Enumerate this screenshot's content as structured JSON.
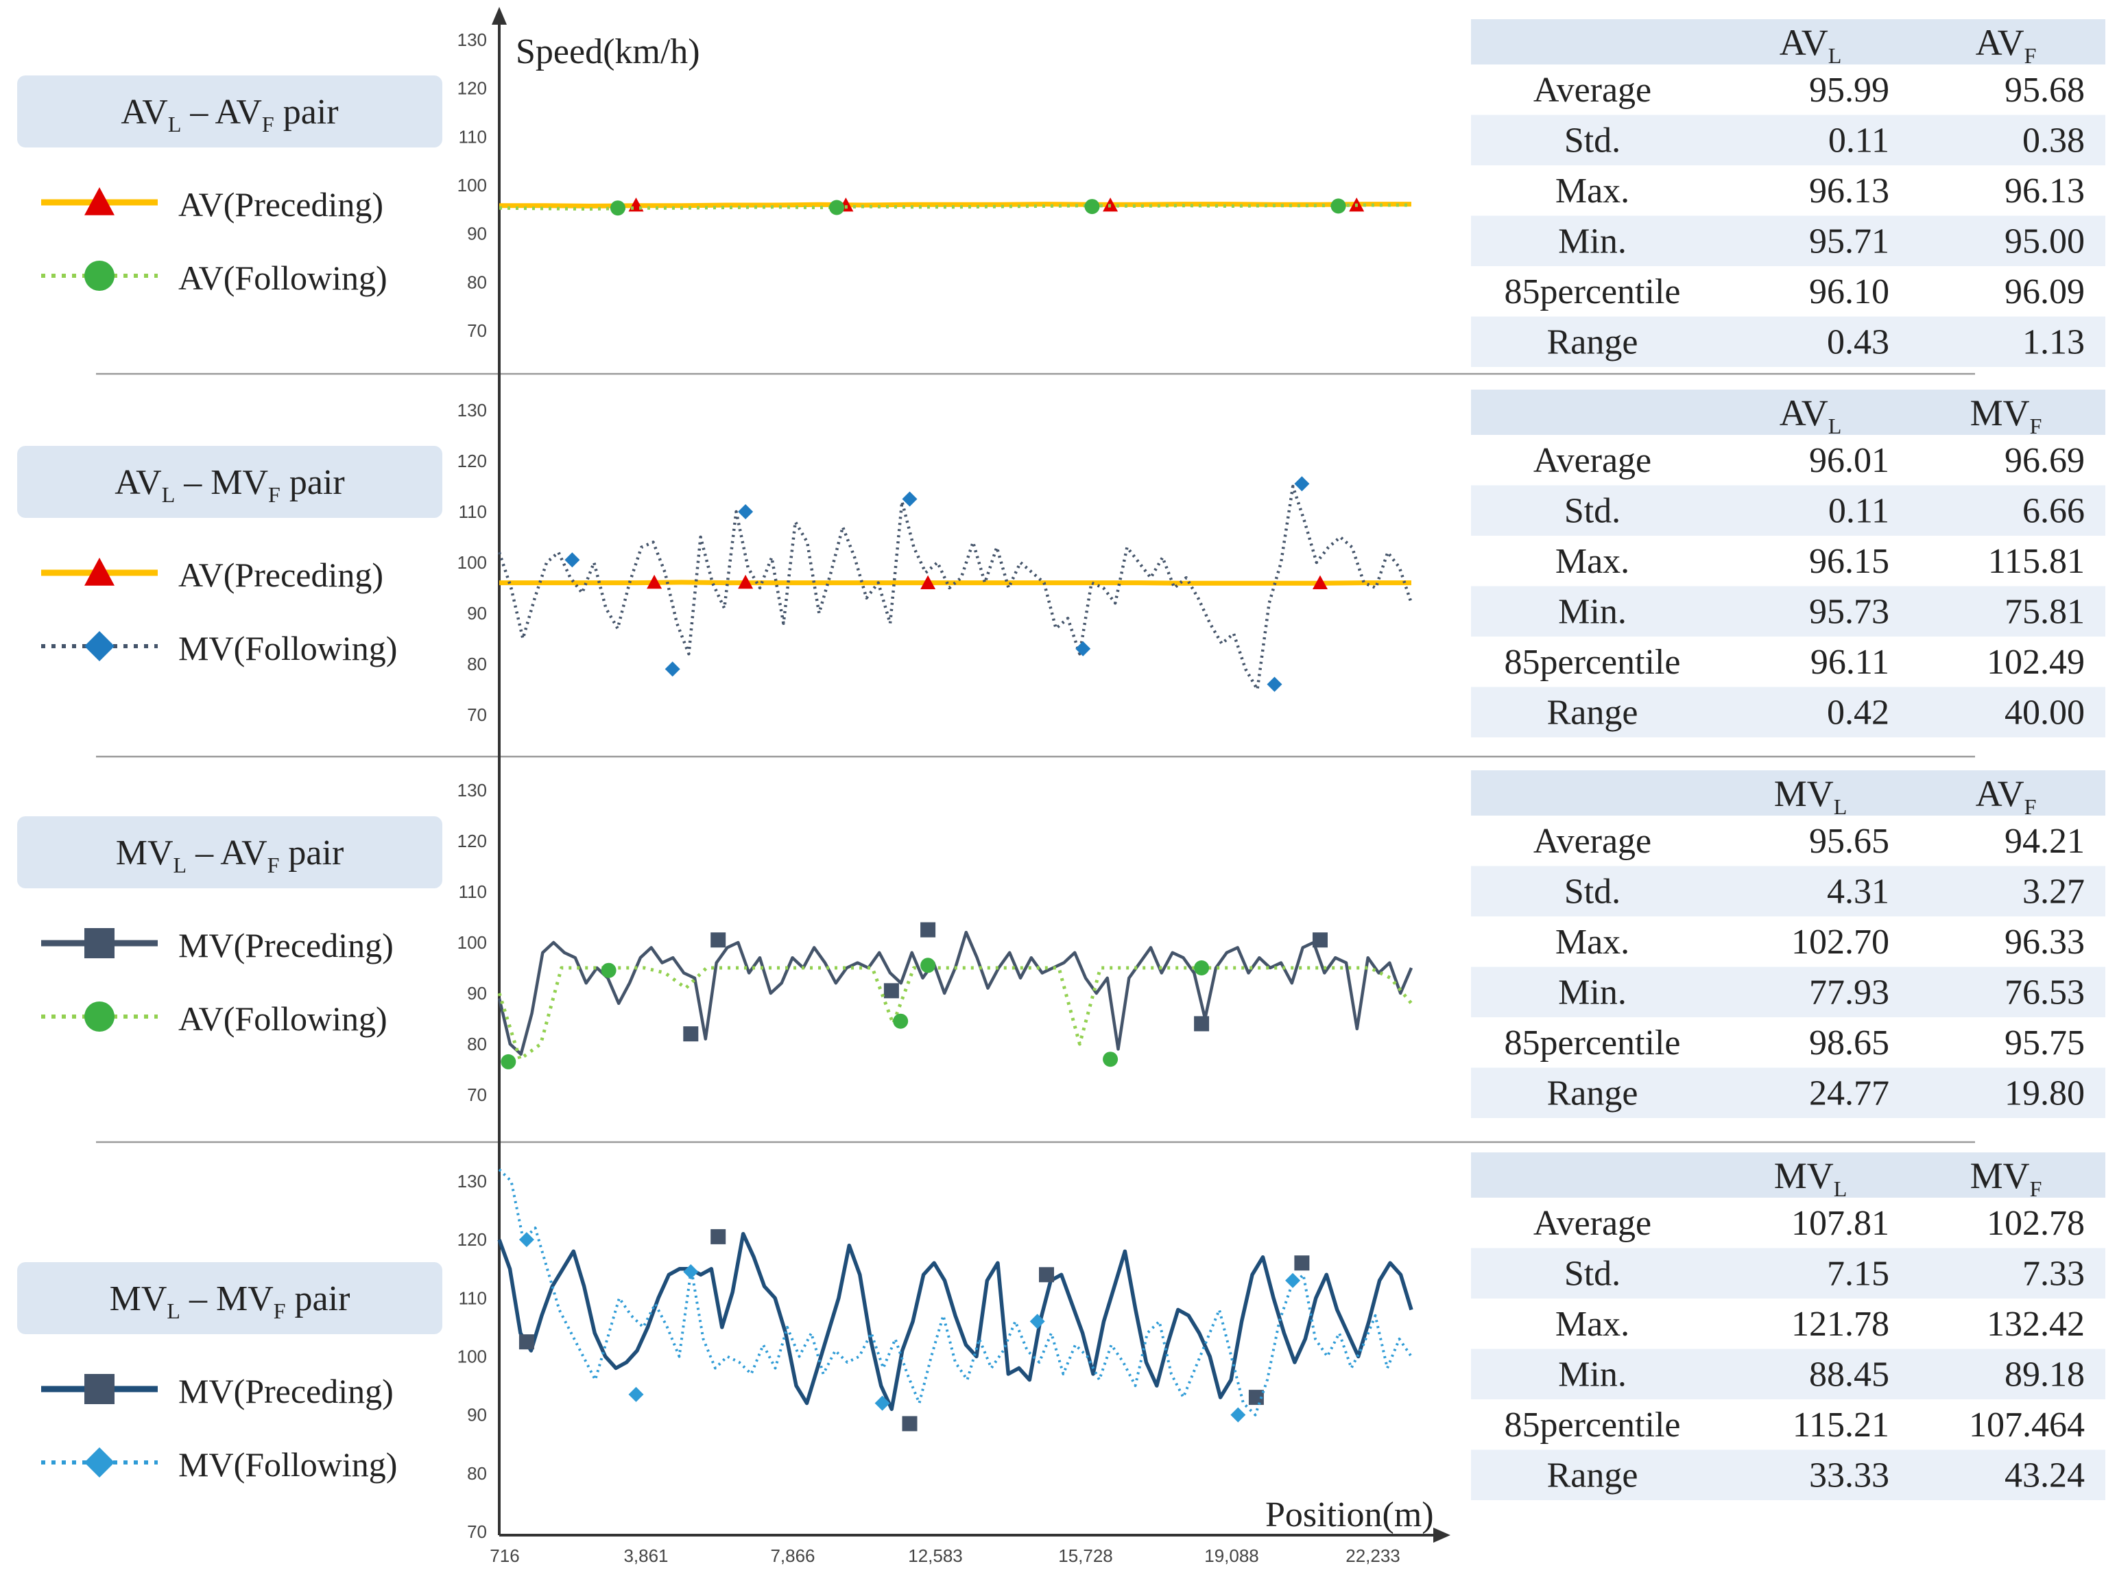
{
  "chart_data": {
    "type": "line",
    "ylabel": "Speed(km/h)",
    "xlabel": "Position(m)",
    "ylim": [
      70,
      130
    ],
    "y_ticks": [
      "130",
      "120",
      "110",
      "100",
      "90",
      "80",
      "70"
    ],
    "x_ticks": [
      "716",
      "3,861",
      "7,866",
      "12,583",
      "15,728",
      "19,088",
      "22,233"
    ],
    "colors": {
      "av_line": "#FFC000",
      "av_marker": "#E00000",
      "av_follow": "#92D050",
      "av_follow_marker": "#3CB043",
      "mv_follow_2": "#44546A",
      "mv_follow_marker_2": "#1F7BC1",
      "mv_preceding": "#44546A",
      "mv_preceding_4": "#1F4E79",
      "mv_follow_4": "#2E9BD6",
      "mv_follow_marker_4": "#2E9BD6",
      "header_fill": "#DCE6F2",
      "row_fill": "#EAF0F8",
      "pair_box": "#DCE6F2"
    },
    "panels": [
      {
        "pair": {
          "p1": "AV",
          "s1": "L",
          "mid": " – ",
          "p2": "AV",
          "s2": "F",
          "suffix": " pair"
        },
        "legend": [
          "AV(Preceding)",
          "AV(Following)"
        ],
        "series": [
          {
            "name": "AV(Preceding)",
            "style": "av_solid",
            "values": [
              95.8,
              95.8,
              95.7,
              95.8,
              95.8,
              95.9,
              95.9,
              96.0,
              95.9,
              96.0,
              96.0,
              96.0,
              96.1,
              96.0,
              96.0,
              96.1,
              96.1,
              96.0,
              96.0,
              96.1,
              96.1
            ],
            "markers": [
              [
                0.15,
                95.9
              ],
              [
                0.38,
                95.9
              ],
              [
                0.67,
                95.9
              ],
              [
                0.94,
                95.9
              ]
            ]
          },
          {
            "name": "AV(Following)",
            "style": "av_dotted",
            "values": [
              95.3,
              95.2,
              95.1,
              95.3,
              95.3,
              95.4,
              95.5,
              95.4,
              95.6,
              95.5,
              95.5,
              95.6,
              95.7,
              95.8,
              95.7,
              95.8,
              95.7,
              95.8,
              95.8,
              95.9,
              95.9
            ],
            "markers": [
              [
                0.13,
                95.3
              ],
              [
                0.37,
                95.4
              ],
              [
                0.65,
                95.6
              ],
              [
                0.92,
                95.7
              ]
            ]
          }
        ],
        "stats": {
          "col1": {
            "p": "AV",
            "s": "L"
          },
          "col2": {
            "p": "AV",
            "s": "F"
          },
          "rows": [
            {
              "label": "Average",
              "v1": "95.99",
              "v2": "95.68"
            },
            {
              "label": "Std.",
              "v1": "0.11",
              "v2": "0.38"
            },
            {
              "label": "Max.",
              "v1": "96.13",
              "v2": "96.13"
            },
            {
              "label": "Min.",
              "v1": "95.71",
              "v2": "95.00"
            },
            {
              "label": "85percentile",
              "v1": "96.10",
              "v2": "96.09"
            },
            {
              "label": "Range",
              "v1": "0.43",
              "v2": "1.13"
            }
          ]
        }
      },
      {
        "pair": {
          "p1": "AV",
          "s1": "L",
          "mid": " – ",
          "p2": "MV",
          "s2": "F",
          "suffix": " pair"
        },
        "legend": [
          "AV(Preceding)",
          "MV(Following)"
        ],
        "series": [
          {
            "name": "AV(Preceding)",
            "style": "av_solid",
            "values": [
              96.0,
              96.0,
              96.0,
              96.0,
              96.1,
              96.0,
              96.0,
              96.0,
              96.0,
              96.0,
              96.0,
              96.0,
              96.0,
              96.0,
              96.0,
              95.9,
              95.9,
              95.9,
              95.9,
              96.0,
              96.0
            ],
            "markers": [
              [
                0.17,
                96.1
              ],
              [
                0.27,
                96.1
              ],
              [
                0.47,
                96.0
              ],
              [
                0.9,
                96.0
              ]
            ]
          },
          {
            "name": "MV(Following)",
            "style": "mv_dotted",
            "values": [
              102,
              95,
              85,
              93,
              100,
              102,
              97,
              94,
              100,
              91,
              87,
              96,
              103,
              104,
              98,
              88,
              82,
              105,
              96,
              91,
              110,
              99,
              95,
              101,
              88,
              108,
              104,
              90,
              98,
              107,
              101,
              93,
              96,
              88,
              112,
              103,
              98,
              100,
              95,
              97,
              104,
              96,
              103,
              95,
              100,
              98,
              96,
              87,
              89,
              82,
              96,
              95,
              92,
              103,
              100,
              97,
              101,
              95,
              97,
              93,
              88,
              84,
              86,
              79,
              75,
              92,
              100,
              115,
              108,
              100,
              103,
              105,
              103,
              96,
              95,
              102,
              99,
              92
            ],
            "markers": [
              [
                0.08,
                100.5
              ],
              [
                0.19,
                79
              ],
              [
                0.27,
                110
              ],
              [
                0.45,
                112.5
              ],
              [
                0.64,
                83
              ],
              [
                0.85,
                76
              ],
              [
                0.88,
                115.5
              ]
            ]
          }
        ],
        "stats": {
          "col1": {
            "p": "AV",
            "s": "L"
          },
          "col2": {
            "p": "MV",
            "s": "F"
          },
          "rows": [
            {
              "label": "Average",
              "v1": "96.01",
              "v2": "96.69"
            },
            {
              "label": "Std.",
              "v1": "0.11",
              "v2": "6.66"
            },
            {
              "label": "Max.",
              "v1": "96.15",
              "v2": "115.81"
            },
            {
              "label": "Min.",
              "v1": "95.73",
              "v2": "75.81"
            },
            {
              "label": "85percentile",
              "v1": "96.11",
              "v2": "102.49"
            },
            {
              "label": "Range",
              "v1": "0.42",
              "v2": "40.00"
            }
          ]
        }
      },
      {
        "pair": {
          "p1": "MV",
          "s1": "L",
          "mid": " – ",
          "p2": "AV",
          "s2": "F",
          "suffix": " pair"
        },
        "legend": [
          "MV(Preceding)",
          "AV(Following)"
        ],
        "series": [
          {
            "name": "MV(Preceding)",
            "style": "mv_solid",
            "values": [
              89,
              80,
              78,
              86,
              98,
              100,
              98,
              97,
              92,
              95,
              93,
              88,
              92,
              97,
              99,
              96,
              97,
              94,
              93,
              81,
              96,
              99,
              100,
              94,
              97,
              90,
              92,
              97,
              95,
              99,
              96,
              92,
              95,
              96,
              95,
              98,
              94,
              92,
              98,
              93,
              96,
              90,
              95,
              102,
              97,
              91,
              95,
              98,
              93,
              97,
              94,
              95,
              96,
              98,
              93,
              90,
              93,
              79,
              93,
              96,
              99,
              94,
              98,
              97,
              94,
              85,
              95,
              98,
              99,
              94,
              97,
              95,
              96,
              92,
              99,
              100,
              94,
              97,
              96,
              83,
              97,
              94,
              96,
              90,
              95
            ],
            "markers": [
              [
                0.21,
                82
              ],
              [
                0.24,
                100.5
              ],
              [
                0.43,
                90.5
              ],
              [
                0.47,
                102.5
              ],
              [
                0.77,
                84
              ],
              [
                0.9,
                100.5
              ]
            ]
          },
          {
            "name": "AV(Following)",
            "style": "av_dotted",
            "values": [
              90,
              77,
              80,
              95,
              95,
              95,
              95,
              95,
              94,
              91,
              95,
              95,
              95,
              95,
              95,
              95,
              95,
              95,
              95,
              84,
              95,
              95,
              95,
              95,
              95,
              95,
              95,
              95,
              80,
              95,
              95,
              95,
              95,
              95,
              95,
              95,
              95,
              95,
              95,
              95,
              95,
              95,
              95,
              93,
              88
            ],
            "markers": [
              [
                0.01,
                76.5
              ],
              [
                0.12,
                94.5
              ],
              [
                0.44,
                84.5
              ],
              [
                0.47,
                95.5
              ],
              [
                0.67,
                77
              ],
              [
                0.77,
                95
              ]
            ]
          }
        ],
        "stats": {
          "col1": {
            "p": "MV",
            "s": "L"
          },
          "col2": {
            "p": "AV",
            "s": "F"
          },
          "rows": [
            {
              "label": "Average",
              "v1": "95.65",
              "v2": "94.21"
            },
            {
              "label": "Std.",
              "v1": "4.31",
              "v2": "3.27"
            },
            {
              "label": "Max.",
              "v1": "102.70",
              "v2": "96.33"
            },
            {
              "label": "Min.",
              "v1": "77.93",
              "v2": "76.53"
            },
            {
              "label": "85percentile",
              "v1": "98.65",
              "v2": "95.75"
            },
            {
              "label": "Range",
              "v1": "24.77",
              "v2": "19.80"
            }
          ]
        }
      },
      {
        "pair": {
          "p1": "MV",
          "s1": "L",
          "mid": " – ",
          "p2": "MV",
          "s2": "F",
          "suffix": " pair"
        },
        "legend": [
          "MV(Preceding)",
          "MV(Following)"
        ],
        "series": [
          {
            "name": "MV(Preceding)",
            "style": "mv_solid_4",
            "values": [
              120,
              115,
              104,
              101,
              107,
              112,
              115,
              118,
              112,
              104,
              100,
              98,
              99,
              101,
              105,
              110,
              114,
              115,
              115,
              114,
              115,
              105,
              111,
              121,
              117,
              112,
              110,
              104,
              95,
              92,
              98,
              104,
              110,
              119,
              114,
              103,
              95,
              91,
              101,
              106,
              114,
              116,
              113,
              107,
              102,
              100,
              113,
              116,
              97,
              98,
              96,
              106,
              113,
              114,
              109,
              104,
              97,
              106,
              112,
              118,
              108,
              99,
              95,
              102,
              108,
              107,
              104,
              100,
              93,
              96,
              106,
              114,
              117,
              110,
              104,
              99,
              103,
              110,
              114,
              108,
              104,
              100,
              106,
              113,
              116,
              114,
              108
            ],
            "markers": [
              [
                0.03,
                102.5
              ],
              [
                0.24,
                120.5
              ],
              [
                0.45,
                88.5
              ],
              [
                0.6,
                114
              ],
              [
                0.83,
                93
              ],
              [
                0.88,
                116
              ]
            ]
          },
          {
            "name": "MV(Following)",
            "style": "mv_dotted_4",
            "values": [
              132,
              130,
              120,
              122,
              115,
              108,
              104,
              100,
              96,
              103,
              110,
              107,
              105,
              109,
              105,
              100,
              115,
              103,
              98,
              100,
              99,
              97,
              102,
              98,
              105,
              100,
              104,
              97,
              101,
              99,
              100,
              104,
              98,
              103,
              97,
              92,
              100,
              107,
              99,
              96,
              103,
              98,
              101,
              106,
              101,
              99,
              104,
              97,
              102,
              100,
              96,
              102,
              99,
              95,
              104,
              106,
              97,
              93,
              98,
              103,
              108,
              100,
              92,
              90,
              96,
              106,
              112,
              114,
              103,
              100,
              104,
              98,
              102,
              107,
              98,
              103,
              100
            ],
            "markers": [
              [
                0.03,
                120
              ],
              [
                0.15,
                93.5
              ],
              [
                0.21,
                114.5
              ],
              [
                0.42,
                92
              ],
              [
                0.59,
                106
              ],
              [
                0.81,
                90
              ],
              [
                0.87,
                113
              ]
            ]
          }
        ],
        "stats": {
          "col1": {
            "p": "MV",
            "s": "L"
          },
          "col2": {
            "p": "MV",
            "s": "F"
          },
          "rows": [
            {
              "label": "Average",
              "v1": "107.81",
              "v2": "102.78"
            },
            {
              "label": "Std.",
              "v1": "7.15",
              "v2": "7.33"
            },
            {
              "label": "Max.",
              "v1": "121.78",
              "v2": "132.42"
            },
            {
              "label": "Min.",
              "v1": "88.45",
              "v2": "89.18"
            },
            {
              "label": "85percentile",
              "v1": "115.21",
              "v2": "107.464"
            },
            {
              "label": "Range",
              "v1": "33.33",
              "v2": "43.24"
            }
          ]
        }
      }
    ]
  }
}
